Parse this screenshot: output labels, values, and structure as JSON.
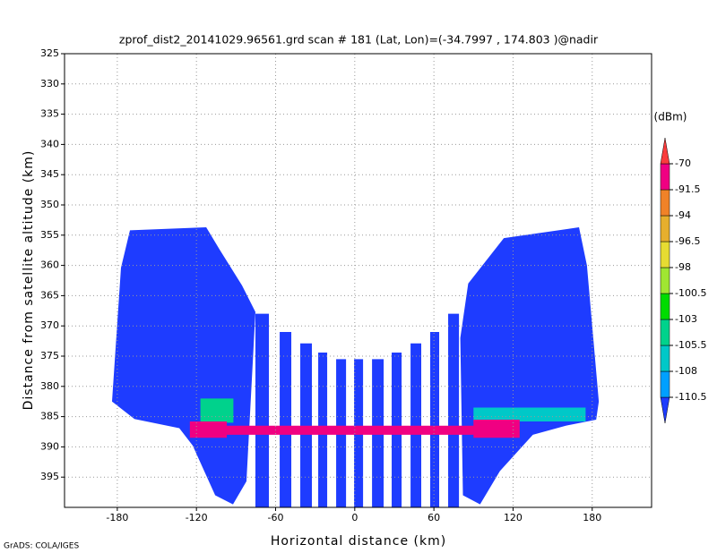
{
  "chart_data": {
    "type": "field",
    "title": "zprof_dist2_20141029.96561.grd  scan # 181  (Lat, Lon)=(-34.7997 , 174.803 )@nadir",
    "x_label": "Horizontal distance (km)",
    "y_label": "Distance from satellite altitude (km)",
    "colorbar_unit": "(dBm)",
    "footer": "GrADS: COLA/IGES",
    "xlim": [
      -220,
      225
    ],
    "ylim": [
      325,
      400
    ],
    "y_inverted": true,
    "xticks": [
      -180,
      -120,
      -60,
      0,
      60,
      120,
      180
    ],
    "yticks": [
      325,
      330,
      335,
      340,
      345,
      350,
      355,
      360,
      365,
      370,
      375,
      380,
      385,
      390,
      395
    ],
    "grid": true,
    "levels": [
      -110.5,
      -108,
      -105.5,
      -103,
      -100.5,
      -98,
      -96.5,
      -94,
      -91.5,
      -70
    ],
    "colors": [
      "#1e3cff",
      "#00a0ff",
      "#00c8c8",
      "#00d28c",
      "#00dc00",
      "#a0e632",
      "#e6dc32",
      "#e6af2d",
      "#f08228",
      "#f00082",
      "#fa3c3c"
    ],
    "regions": [
      {
        "value": -112,
        "x": [
          -170.4,
          -112.6,
          -102.4,
          -85.5,
          -75.3,
          -82.1,
          -92.3,
          -105.8,
          -122.8,
          -133,
          -167,
          -184,
          -177.2
        ],
        "y": [
          354.2,
          353.7,
          357.4,
          363.3,
          367.7,
          395.7,
          399.5,
          398,
          389.8,
          386.9,
          385.4,
          382.5,
          360.4
        ]
      },
      {
        "value": -112,
        "x": [
          113,
          170,
          176,
          185,
          183,
          160,
          135,
          110,
          95,
          82,
          80,
          86
        ],
        "y": [
          355.5,
          353.7,
          360,
          382.5,
          385.5,
          386.5,
          388,
          394,
          399.5,
          398,
          372,
          363
        ]
      },
      {
        "value": -112,
        "x": [
          -75.3,
          -65.1,
          -65.1,
          -75.3
        ],
        "y": [
          368,
          368,
          400,
          400
        ]
      },
      {
        "value": -112,
        "x": [
          -56.9,
          -48.1,
          -48.1,
          -56.9
        ],
        "y": [
          371,
          371,
          400,
          400
        ]
      },
      {
        "value": -112,
        "x": [
          -41.3,
          -32.5,
          -32.5,
          -41.3
        ],
        "y": [
          372.9,
          372.9,
          400,
          400
        ]
      },
      {
        "value": -112,
        "x": [
          -27.7,
          -20.9,
          -20.9,
          -27.7
        ],
        "y": [
          374.4,
          374.4,
          400,
          400
        ]
      },
      {
        "value": -112,
        "x": [
          -14.1,
          -6.6,
          -6.6,
          -14.1
        ],
        "y": [
          375.5,
          375.5,
          400,
          400
        ]
      },
      {
        "value": -112,
        "x": [
          -0.5,
          6.3,
          6.3,
          -0.5
        ],
        "y": [
          375.5,
          375.5,
          400,
          400
        ]
      },
      {
        "value": -112,
        "x": [
          13.1,
          21.9,
          21.9,
          13.1
        ],
        "y": [
          375.5,
          375.5,
          400,
          400
        ]
      },
      {
        "value": -112,
        "x": [
          28,
          35.5,
          35.5,
          28
        ],
        "y": [
          374.4,
          374.4,
          400,
          400
        ]
      },
      {
        "value": -112,
        "x": [
          42.3,
          50.4,
          50.4,
          42.3
        ],
        "y": [
          372.9,
          372.9,
          400,
          400
        ]
      },
      {
        "value": -112,
        "x": [
          57.2,
          64,
          64,
          57.2
        ],
        "y": [
          371,
          371,
          400,
          400
        ]
      },
      {
        "value": -112,
        "x": [
          70.8,
          79,
          79,
          70.8
        ],
        "y": [
          368,
          368,
          400,
          400
        ]
      },
      {
        "value": -104,
        "x": [
          -117,
          -92,
          -92,
          -117
        ],
        "y": [
          382,
          382,
          386,
          386
        ]
      },
      {
        "value": -107,
        "x": [
          90,
          175,
          175,
          90
        ],
        "y": [
          383.5,
          383.5,
          385.8,
          385.8
        ]
      },
      {
        "value": -88,
        "x": [
          -125,
          -97,
          -97,
          90,
          90,
          125,
          125,
          90,
          90,
          -97,
          -97,
          -125
        ],
        "y": [
          385.8,
          385.8,
          386.5,
          386.5,
          385.5,
          385.5,
          388.5,
          388.5,
          388,
          388,
          388.5,
          388.5
        ]
      }
    ]
  }
}
